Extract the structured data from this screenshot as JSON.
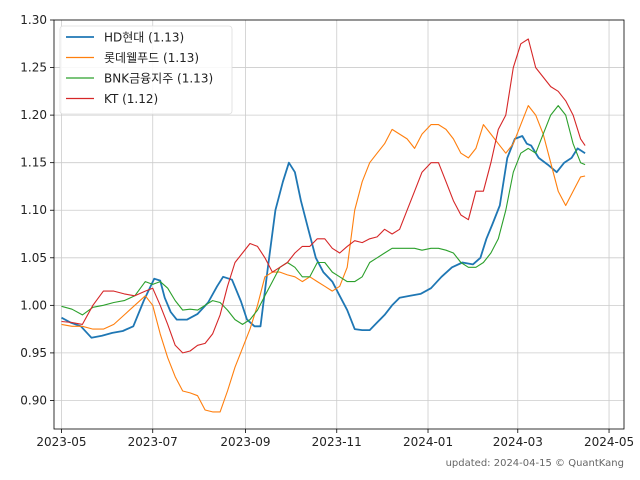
{
  "chart_data": {
    "type": "line",
    "title": "",
    "xlabel": "",
    "ylabel": "",
    "ylim": [
      0.87,
      1.3
    ],
    "xlim": [
      "2023-04-26",
      "2024-05-11"
    ],
    "x_ticks": [
      "2023-05-01",
      "2023-07-01",
      "2023-09-01",
      "2023-11-01",
      "2024-01-01",
      "2024-03-01",
      "2024-05-01"
    ],
    "x_tick_labels": [
      "2023-05",
      "2023-07",
      "2023-09",
      "2023-11",
      "2024-01",
      "2024-03",
      "2024-05"
    ],
    "y_ticks": [
      0.9,
      0.95,
      1.0,
      1.05,
      1.1,
      1.15,
      1.2,
      1.25,
      1.3
    ],
    "y_tick_labels": [
      "0.90",
      "0.95",
      "1.00",
      "1.05",
      "1.10",
      "1.15",
      "1.20",
      "1.25",
      "1.30"
    ],
    "grid": true,
    "legend_position": "top-left",
    "series": [
      {
        "name": "HD현대 (1.13)",
        "color": "#1f77b4",
        "points": [
          [
            "2023-05-01",
            0.987
          ],
          [
            "2023-05-07",
            0.982
          ],
          [
            "2023-05-14",
            0.978
          ],
          [
            "2023-05-21",
            0.966
          ],
          [
            "2023-05-28",
            0.968
          ],
          [
            "2023-06-04",
            0.971
          ],
          [
            "2023-06-11",
            0.973
          ],
          [
            "2023-06-18",
            0.978
          ],
          [
            "2023-06-25",
            1.005
          ],
          [
            "2023-07-02",
            1.028
          ],
          [
            "2023-07-06",
            1.026
          ],
          [
            "2023-07-09",
            1.008
          ],
          [
            "2023-07-13",
            0.993
          ],
          [
            "2023-07-17",
            0.985
          ],
          [
            "2023-07-24",
            0.985
          ],
          [
            "2023-07-31",
            0.991
          ],
          [
            "2023-08-07",
            1.003
          ],
          [
            "2023-08-13",
            1.02
          ],
          [
            "2023-08-17",
            1.03
          ],
          [
            "2023-08-23",
            1.027
          ],
          [
            "2023-08-29",
            1.004
          ],
          [
            "2023-09-02",
            0.985
          ],
          [
            "2023-09-07",
            0.978
          ],
          [
            "2023-09-11",
            0.978
          ],
          [
            "2023-09-16",
            1.04
          ],
          [
            "2023-09-21",
            1.1
          ],
          [
            "2023-09-26",
            1.13
          ],
          [
            "2023-09-30",
            1.15
          ],
          [
            "2023-10-04",
            1.14
          ],
          [
            "2023-10-08",
            1.11
          ],
          [
            "2023-10-13",
            1.08
          ],
          [
            "2023-10-18",
            1.05
          ],
          [
            "2023-10-23",
            1.035
          ],
          [
            "2023-10-29",
            1.025
          ],
          [
            "2023-11-03",
            1.01
          ],
          [
            "2023-11-08",
            0.995
          ],
          [
            "2023-11-13",
            0.975
          ],
          [
            "2023-11-18",
            0.974
          ],
          [
            "2023-11-23",
            0.974
          ],
          [
            "2023-11-28",
            0.982
          ],
          [
            "2023-12-03",
            0.99
          ],
          [
            "2023-12-08",
            1.0
          ],
          [
            "2023-12-13",
            1.008
          ],
          [
            "2023-12-20",
            1.01
          ],
          [
            "2023-12-27",
            1.012
          ],
          [
            "2024-01-03",
            1.018
          ],
          [
            "2024-01-10",
            1.03
          ],
          [
            "2024-01-17",
            1.04
          ],
          [
            "2024-01-24",
            1.045
          ],
          [
            "2024-01-31",
            1.043
          ],
          [
            "2024-02-05",
            1.05
          ],
          [
            "2024-02-09",
            1.07
          ],
          [
            "2024-02-13",
            1.085
          ],
          [
            "2024-02-18",
            1.105
          ],
          [
            "2024-02-23",
            1.155
          ],
          [
            "2024-02-28",
            1.175
          ],
          [
            "2024-03-04",
            1.178
          ],
          [
            "2024-03-07",
            1.17
          ],
          [
            "2024-03-10",
            1.168
          ],
          [
            "2024-03-15",
            1.155
          ],
          [
            "2024-03-21",
            1.148
          ],
          [
            "2024-03-27",
            1.14
          ],
          [
            "2024-04-01",
            1.15
          ],
          [
            "2024-04-06",
            1.155
          ],
          [
            "2024-04-10",
            1.165
          ],
          [
            "2024-04-15",
            1.16
          ]
        ]
      },
      {
        "name": "롯데웰푸드 (1.13)",
        "color": "#ff7f0e",
        "points": [
          [
            "2023-05-01",
            0.98
          ],
          [
            "2023-05-08",
            0.978
          ],
          [
            "2023-05-15",
            0.978
          ],
          [
            "2023-05-22",
            0.975
          ],
          [
            "2023-05-29",
            0.975
          ],
          [
            "2023-06-05",
            0.98
          ],
          [
            "2023-06-12",
            0.99
          ],
          [
            "2023-06-19",
            1.0
          ],
          [
            "2023-06-26",
            1.01
          ],
          [
            "2023-07-01",
            1.0
          ],
          [
            "2023-07-06",
            0.97
          ],
          [
            "2023-07-11",
            0.945
          ],
          [
            "2023-07-16",
            0.925
          ],
          [
            "2023-07-21",
            0.91
          ],
          [
            "2023-07-26",
            0.908
          ],
          [
            "2023-07-31",
            0.905
          ],
          [
            "2023-08-05",
            0.89
          ],
          [
            "2023-08-10",
            0.888
          ],
          [
            "2023-08-15",
            0.888
          ],
          [
            "2023-08-20",
            0.91
          ],
          [
            "2023-08-25",
            0.935
          ],
          [
            "2023-08-30",
            0.955
          ],
          [
            "2023-09-04",
            0.975
          ],
          [
            "2023-09-09",
            1.0
          ],
          [
            "2023-09-14",
            1.03
          ],
          [
            "2023-09-19",
            1.035
          ],
          [
            "2023-09-24",
            1.035
          ],
          [
            "2023-09-29",
            1.032
          ],
          [
            "2023-10-04",
            1.03
          ],
          [
            "2023-10-09",
            1.025
          ],
          [
            "2023-10-14",
            1.03
          ],
          [
            "2023-10-19",
            1.025
          ],
          [
            "2023-10-24",
            1.02
          ],
          [
            "2023-10-29",
            1.015
          ],
          [
            "2023-11-03",
            1.02
          ],
          [
            "2023-11-08",
            1.04
          ],
          [
            "2023-11-13",
            1.1
          ],
          [
            "2023-11-18",
            1.13
          ],
          [
            "2023-11-23",
            1.15
          ],
          [
            "2023-11-28",
            1.16
          ],
          [
            "2023-12-03",
            1.17
          ],
          [
            "2023-12-08",
            1.185
          ],
          [
            "2023-12-13",
            1.18
          ],
          [
            "2023-12-18",
            1.175
          ],
          [
            "2023-12-23",
            1.165
          ],
          [
            "2023-12-28",
            1.18
          ],
          [
            "2024-01-03",
            1.19
          ],
          [
            "2024-01-08",
            1.19
          ],
          [
            "2024-01-13",
            1.185
          ],
          [
            "2024-01-18",
            1.175
          ],
          [
            "2024-01-23",
            1.16
          ],
          [
            "2024-01-28",
            1.155
          ],
          [
            "2024-02-02",
            1.165
          ],
          [
            "2024-02-07",
            1.19
          ],
          [
            "2024-02-12",
            1.18
          ],
          [
            "2024-02-17",
            1.17
          ],
          [
            "2024-02-22",
            1.16
          ],
          [
            "2024-02-27",
            1.17
          ],
          [
            "2024-03-03",
            1.19
          ],
          [
            "2024-03-08",
            1.21
          ],
          [
            "2024-03-13",
            1.2
          ],
          [
            "2024-03-18",
            1.18
          ],
          [
            "2024-03-23",
            1.15
          ],
          [
            "2024-03-28",
            1.12
          ],
          [
            "2024-04-02",
            1.105
          ],
          [
            "2024-04-07",
            1.12
          ],
          [
            "2024-04-12",
            1.135
          ],
          [
            "2024-04-15",
            1.136
          ]
        ]
      },
      {
        "name": "BNK금융지주 (1.13)",
        "color": "#2ca02c",
        "points": [
          [
            "2023-05-01",
            0.999
          ],
          [
            "2023-05-08",
            0.996
          ],
          [
            "2023-05-15",
            0.99
          ],
          [
            "2023-05-22",
            0.998
          ],
          [
            "2023-05-29",
            1.0
          ],
          [
            "2023-06-05",
            1.003
          ],
          [
            "2023-06-12",
            1.005
          ],
          [
            "2023-06-19",
            1.01
          ],
          [
            "2023-06-26",
            1.025
          ],
          [
            "2023-07-01",
            1.022
          ],
          [
            "2023-07-06",
            1.025
          ],
          [
            "2023-07-11",
            1.018
          ],
          [
            "2023-07-16",
            1.005
          ],
          [
            "2023-07-21",
            0.995
          ],
          [
            "2023-07-26",
            0.996
          ],
          [
            "2023-07-31",
            0.995
          ],
          [
            "2023-08-05",
            1.0
          ],
          [
            "2023-08-10",
            1.005
          ],
          [
            "2023-08-15",
            1.003
          ],
          [
            "2023-08-20",
            0.995
          ],
          [
            "2023-08-25",
            0.985
          ],
          [
            "2023-08-30",
            0.98
          ],
          [
            "2023-09-04",
            0.985
          ],
          [
            "2023-09-09",
            0.995
          ],
          [
            "2023-09-14",
            1.01
          ],
          [
            "2023-09-19",
            1.025
          ],
          [
            "2023-09-24",
            1.04
          ],
          [
            "2023-09-29",
            1.045
          ],
          [
            "2023-10-04",
            1.04
          ],
          [
            "2023-10-09",
            1.03
          ],
          [
            "2023-10-14",
            1.03
          ],
          [
            "2023-10-19",
            1.045
          ],
          [
            "2023-10-24",
            1.045
          ],
          [
            "2023-10-29",
            1.035
          ],
          [
            "2023-11-03",
            1.03
          ],
          [
            "2023-11-08",
            1.025
          ],
          [
            "2023-11-13",
            1.025
          ],
          [
            "2023-11-18",
            1.03
          ],
          [
            "2023-11-23",
            1.045
          ],
          [
            "2023-11-28",
            1.05
          ],
          [
            "2023-12-03",
            1.055
          ],
          [
            "2023-12-08",
            1.06
          ],
          [
            "2023-12-13",
            1.06
          ],
          [
            "2023-12-18",
            1.06
          ],
          [
            "2023-12-23",
            1.06
          ],
          [
            "2023-12-28",
            1.058
          ],
          [
            "2024-01-03",
            1.06
          ],
          [
            "2024-01-08",
            1.06
          ],
          [
            "2024-01-13",
            1.058
          ],
          [
            "2024-01-18",
            1.055
          ],
          [
            "2024-01-23",
            1.045
          ],
          [
            "2024-01-28",
            1.04
          ],
          [
            "2024-02-02",
            1.04
          ],
          [
            "2024-02-07",
            1.045
          ],
          [
            "2024-02-12",
            1.055
          ],
          [
            "2024-02-17",
            1.07
          ],
          [
            "2024-02-22",
            1.1
          ],
          [
            "2024-02-27",
            1.14
          ],
          [
            "2024-03-03",
            1.16
          ],
          [
            "2024-03-08",
            1.165
          ],
          [
            "2024-03-13",
            1.16
          ],
          [
            "2024-03-18",
            1.18
          ],
          [
            "2024-03-23",
            1.2
          ],
          [
            "2024-03-28",
            1.21
          ],
          [
            "2024-04-02",
            1.2
          ],
          [
            "2024-04-07",
            1.17
          ],
          [
            "2024-04-12",
            1.15
          ],
          [
            "2024-04-15",
            1.148
          ]
        ]
      },
      {
        "name": "KT (1.12)",
        "color": "#d62728",
        "points": [
          [
            "2023-05-01",
            0.983
          ],
          [
            "2023-05-08",
            0.982
          ],
          [
            "2023-05-15",
            0.98
          ],
          [
            "2023-05-22",
            1.0
          ],
          [
            "2023-05-29",
            1.015
          ],
          [
            "2023-06-05",
            1.015
          ],
          [
            "2023-06-12",
            1.012
          ],
          [
            "2023-06-19",
            1.01
          ],
          [
            "2023-06-26",
            1.015
          ],
          [
            "2023-07-01",
            1.018
          ],
          [
            "2023-07-06",
            1.0
          ],
          [
            "2023-07-11",
            0.98
          ],
          [
            "2023-07-16",
            0.958
          ],
          [
            "2023-07-21",
            0.95
          ],
          [
            "2023-07-26",
            0.952
          ],
          [
            "2023-07-31",
            0.958
          ],
          [
            "2023-08-05",
            0.96
          ],
          [
            "2023-08-10",
            0.97
          ],
          [
            "2023-08-15",
            0.99
          ],
          [
            "2023-08-20",
            1.02
          ],
          [
            "2023-08-25",
            1.045
          ],
          [
            "2023-08-30",
            1.055
          ],
          [
            "2023-09-04",
            1.065
          ],
          [
            "2023-09-09",
            1.062
          ],
          [
            "2023-09-14",
            1.05
          ],
          [
            "2023-09-19",
            1.035
          ],
          [
            "2023-09-24",
            1.04
          ],
          [
            "2023-09-29",
            1.045
          ],
          [
            "2023-10-04",
            1.055
          ],
          [
            "2023-10-09",
            1.062
          ],
          [
            "2023-10-14",
            1.062
          ],
          [
            "2023-10-19",
            1.07
          ],
          [
            "2023-10-24",
            1.07
          ],
          [
            "2023-10-29",
            1.06
          ],
          [
            "2023-11-03",
            1.055
          ],
          [
            "2023-11-08",
            1.062
          ],
          [
            "2023-11-13",
            1.068
          ],
          [
            "2023-11-18",
            1.066
          ],
          [
            "2023-11-23",
            1.07
          ],
          [
            "2023-11-28",
            1.072
          ],
          [
            "2023-12-03",
            1.08
          ],
          [
            "2023-12-08",
            1.075
          ],
          [
            "2023-12-13",
            1.08
          ],
          [
            "2023-12-18",
            1.1
          ],
          [
            "2023-12-23",
            1.12
          ],
          [
            "2023-12-28",
            1.14
          ],
          [
            "2024-01-03",
            1.15
          ],
          [
            "2024-01-08",
            1.15
          ],
          [
            "2024-01-13",
            1.13
          ],
          [
            "2024-01-18",
            1.11
          ],
          [
            "2024-01-23",
            1.095
          ],
          [
            "2024-01-28",
            1.09
          ],
          [
            "2024-02-02",
            1.12
          ],
          [
            "2024-02-07",
            1.12
          ],
          [
            "2024-02-12",
            1.15
          ],
          [
            "2024-02-17",
            1.185
          ],
          [
            "2024-02-22",
            1.2
          ],
          [
            "2024-02-27",
            1.25
          ],
          [
            "2024-03-03",
            1.275
          ],
          [
            "2024-03-08",
            1.28
          ],
          [
            "2024-03-13",
            1.25
          ],
          [
            "2024-03-18",
            1.24
          ],
          [
            "2024-03-23",
            1.23
          ],
          [
            "2024-03-28",
            1.225
          ],
          [
            "2024-04-02",
            1.215
          ],
          [
            "2024-04-07",
            1.2
          ],
          [
            "2024-04-12",
            1.175
          ],
          [
            "2024-04-15",
            1.168
          ]
        ]
      }
    ]
  },
  "footer": {
    "text": "updated: 2024-04-15 © QuantKang"
  }
}
